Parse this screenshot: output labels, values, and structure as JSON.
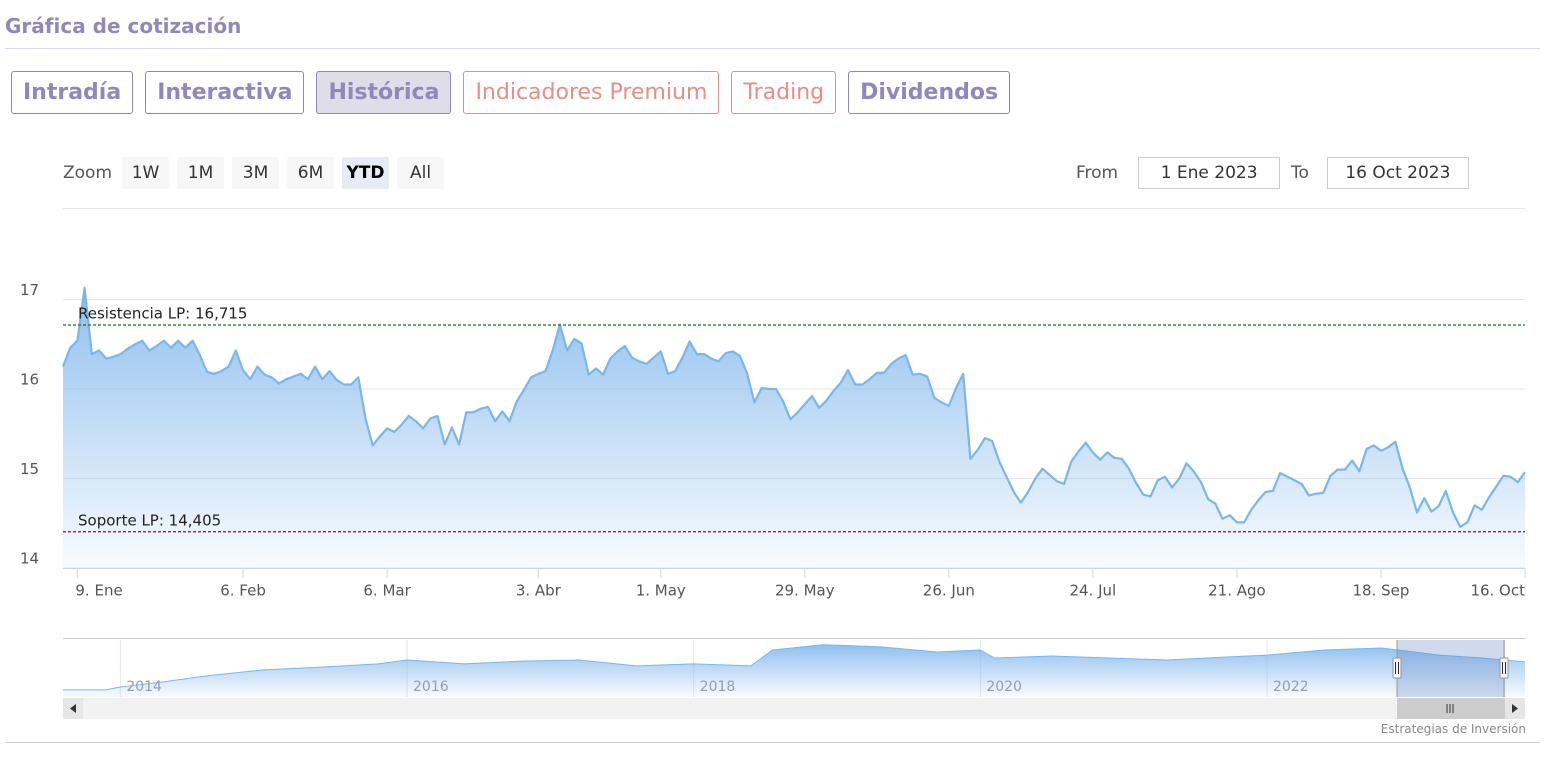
{
  "header": {
    "title": "Gráfica de cotización"
  },
  "tabs": [
    {
      "label": "Intradía",
      "active": false,
      "premium": false
    },
    {
      "label": "Interactiva",
      "active": false,
      "premium": false
    },
    {
      "label": "Histórica",
      "active": true,
      "premium": false
    },
    {
      "label": "Indicadores Premium",
      "active": false,
      "premium": true
    },
    {
      "label": "Trading",
      "active": false,
      "premium": true
    },
    {
      "label": "Dividendos",
      "active": false,
      "premium": false
    }
  ],
  "zoom": {
    "label": "Zoom",
    "buttons": [
      {
        "label": "1W",
        "active": false
      },
      {
        "label": "1M",
        "active": false
      },
      {
        "label": "3M",
        "active": false
      },
      {
        "label": "6M",
        "active": false
      },
      {
        "label": "YTD",
        "active": true
      },
      {
        "label": "All",
        "active": false
      }
    ]
  },
  "range": {
    "from_label": "From",
    "from": "1 Ene 2023",
    "to_label": "To",
    "to": "16 Oct 2023"
  },
  "chart_data": [
    {
      "type": "area",
      "color": "#7cb5ec",
      "grid": true,
      "categories": [
        null,
        null,
        "9. Ene",
        null,
        null,
        null,
        null,
        null,
        null,
        null,
        null,
        null,
        null,
        null,
        null,
        null,
        null,
        null,
        null,
        null,
        null,
        null,
        null,
        null,
        null,
        "6. Feb",
        null,
        null,
        null,
        null,
        null,
        null,
        null,
        null,
        null,
        null,
        null,
        null,
        null,
        null,
        null,
        null,
        null,
        null,
        null,
        "6. Mar",
        null,
        null,
        null,
        null,
        null,
        null,
        null,
        null,
        null,
        null,
        null,
        null,
        null,
        null,
        null,
        null,
        null,
        null,
        null,
        null,
        "3. Abr",
        null,
        null,
        null,
        null,
        null,
        null,
        null,
        null,
        null,
        null,
        null,
        null,
        null,
        null,
        null,
        null,
        "1. May",
        null,
        null,
        null,
        null,
        null,
        null,
        null,
        null,
        null,
        null,
        null,
        null,
        null,
        null,
        null,
        null,
        null,
        null,
        null,
        "29. May",
        null,
        null,
        null,
        null,
        null,
        null,
        null,
        null,
        null,
        null,
        null,
        null,
        null,
        null,
        null,
        null,
        null,
        null,
        null,
        "26. Jun",
        null,
        null,
        null,
        null,
        null,
        null,
        null,
        null,
        null,
        null,
        null,
        null,
        null,
        null,
        null,
        null,
        null,
        null,
        null,
        "24. Jul",
        null,
        null,
        null,
        null,
        null,
        null,
        null,
        null,
        null,
        null,
        null,
        null,
        null,
        null,
        null,
        null,
        null,
        null,
        null,
        "21. Ago",
        null,
        null,
        null,
        null,
        null,
        null,
        null,
        null,
        null,
        null,
        null,
        null,
        null,
        null,
        null,
        null,
        null,
        null,
        null,
        "18. Sep",
        null,
        null,
        null,
        null,
        null,
        null,
        null,
        null,
        null,
        null,
        null,
        null,
        null,
        null,
        null,
        null,
        null,
        null,
        null,
        "16. Oct"
      ],
      "values": [
        16.25,
        16.46,
        16.54,
        17.13,
        16.39,
        16.43,
        16.34,
        16.36,
        16.39,
        16.45,
        16.5,
        16.54,
        16.43,
        16.48,
        16.54,
        16.46,
        16.54,
        16.46,
        16.54,
        16.38,
        16.19,
        16.17,
        16.2,
        16.25,
        16.43,
        16.21,
        16.11,
        16.25,
        16.16,
        16.13,
        16.06,
        16.11,
        16.14,
        16.17,
        16.11,
        16.25,
        16.11,
        16.2,
        16.1,
        16.05,
        16.05,
        16.13,
        15.67,
        15.37,
        15.47,
        15.56,
        15.52,
        15.6,
        15.7,
        15.64,
        15.56,
        15.67,
        15.7,
        15.38,
        15.57,
        15.38,
        15.74,
        15.74,
        15.78,
        15.8,
        15.64,
        15.75,
        15.64,
        15.86,
        15.99,
        16.13,
        16.17,
        16.2,
        16.43,
        16.72,
        16.43,
        16.56,
        16.51,
        16.16,
        16.23,
        16.16,
        16.34,
        16.42,
        16.48,
        16.35,
        16.31,
        16.28,
        16.35,
        16.42,
        16.17,
        16.2,
        16.35,
        16.53,
        16.39,
        16.39,
        16.34,
        16.31,
        16.4,
        16.42,
        16.37,
        16.17,
        15.85,
        16.01,
        16,
        16,
        15.86,
        15.66,
        15.74,
        15.83,
        15.92,
        15.79,
        15.87,
        15.98,
        16.07,
        16.21,
        16.05,
        16.05,
        16.11,
        16.18,
        16.18,
        16.28,
        16.34,
        16.38,
        16.16,
        16.17,
        16.14,
        15.9,
        15.85,
        15.81,
        16.01,
        16.17,
        15.22,
        15.32,
        15.45,
        15.42,
        15.19,
        15.02,
        14.85,
        14.73,
        14.85,
        15,
        15.11,
        15.04,
        14.97,
        14.94,
        15.19,
        15.3,
        15.4,
        15.29,
        15.21,
        15.29,
        15.23,
        15.22,
        15.11,
        14.95,
        14.82,
        14.8,
        14.98,
        15.02,
        14.9,
        15,
        15.17,
        15.08,
        14.96,
        14.77,
        14.72,
        14.55,
        14.59,
        14.51,
        14.51,
        14.65,
        14.76,
        14.85,
        14.86,
        15.06,
        15.02,
        14.98,
        14.94,
        14.81,
        14.83,
        14.84,
        15.03,
        15.1,
        15.1,
        15.2,
        15.08,
        15.33,
        15.37,
        15.31,
        15.35,
        15.41,
        15.11,
        14.9,
        14.62,
        14.78,
        14.63,
        14.69,
        14.86,
        14.62,
        14.46,
        14.51,
        14.7,
        14.65,
        14.79,
        14.91,
        15.03,
        15.02,
        14.96,
        15.07
      ],
      "ylim": [
        14,
        18
      ],
      "yticks": [
        14,
        15,
        16,
        17
      ],
      "plot_lines": [
        {
          "value": 16.715,
          "label": "Resistencia LP: 16,715",
          "color": "#1b6e1b"
        },
        {
          "value": 14.405,
          "label": "Soporte LP: 14,405",
          "color": "#8b1a1a"
        }
      ]
    },
    {
      "type": "area",
      "color": "#7cb5ec",
      "x": [
        2013.6,
        2013.9,
        2014,
        2014.3,
        2014.6,
        2015,
        2015.4,
        2015.8,
        2016,
        2016.4,
        2016.8,
        2017.2,
        2017.6,
        2018,
        2018.4,
        2018.55,
        2018.9,
        2019.3,
        2019.7,
        2020,
        2020.1,
        2020.5,
        2020.9,
        2021.3,
        2021.7,
        2022,
        2022.4,
        2022.8,
        2023.2,
        2023.5,
        2023.8
      ],
      "values": [
        2.5,
        2.5,
        3.5,
        5.3,
        7.4,
        9.5,
        10.5,
        11.6,
        13,
        11.6,
        12.6,
        13,
        10.9,
        11.6,
        10.9,
        16.5,
        18.3,
        17.6,
        15.8,
        16.5,
        13.7,
        14.4,
        13.7,
        13,
        14,
        14.7,
        16.5,
        17.2,
        14.7,
        13.7,
        12.3
      ],
      "xlim": [
        2013.6,
        2023.8
      ],
      "xticks": [
        2014,
        2016,
        2018,
        2020,
        2022
      ],
      "ylim": [
        0,
        20
      ]
    }
  ],
  "credit": "Estrategias de Inversión"
}
